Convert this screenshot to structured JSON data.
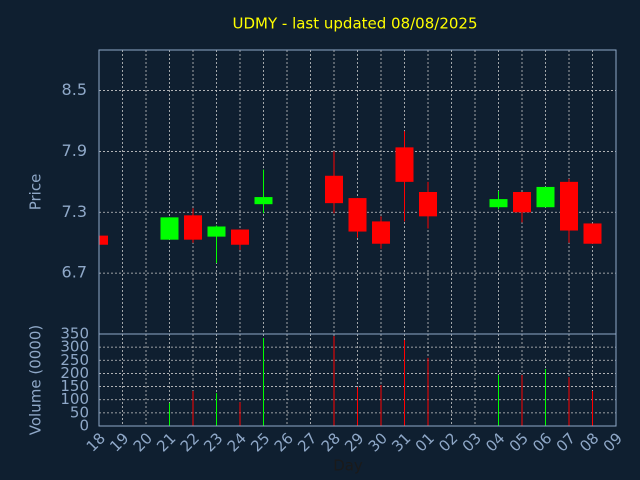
{
  "chart_data": {
    "type": "candlestick",
    "title": "UDMY - last updated 08/08/2025",
    "ylabel": "Price",
    "volume_ylabel": "Volume (0000)",
    "xlabel": "Day",
    "categories": [
      "18",
      "19",
      "20",
      "21",
      "22",
      "23",
      "24",
      "25",
      "26",
      "27",
      "28",
      "29",
      "30",
      "31",
      "01",
      "02",
      "03",
      "04",
      "05",
      "06",
      "07",
      "08",
      "09"
    ],
    "open": [
      7.07,
      null,
      null,
      7.03,
      7.27,
      7.06,
      7.13,
      7.38,
      null,
      null,
      7.66,
      7.44,
      7.21,
      7.94,
      7.5,
      null,
      null,
      7.35,
      7.5,
      7.35,
      7.6,
      7.19,
      null
    ],
    "high": [
      7.07,
      null,
      null,
      7.25,
      7.34,
      7.17,
      7.13,
      7.72,
      null,
      null,
      7.9,
      7.44,
      7.26,
      8.1,
      7.6,
      null,
      null,
      7.51,
      7.5,
      7.55,
      7.63,
      7.19,
      null
    ],
    "low": [
      6.98,
      null,
      null,
      7.03,
      7.0,
      6.8,
      6.93,
      7.29,
      null,
      null,
      7.29,
      7.05,
      6.94,
      7.21,
      7.14,
      null,
      null,
      7.33,
      7.2,
      7.35,
      7.0,
      6.99,
      null
    ],
    "close": [
      6.98,
      null,
      null,
      7.25,
      7.03,
      7.16,
      6.98,
      7.45,
      null,
      null,
      7.39,
      7.11,
      6.99,
      7.6,
      7.26,
      null,
      null,
      7.43,
      7.3,
      7.55,
      7.12,
      6.99,
      null
    ],
    "volume": [
      null,
      null,
      null,
      87,
      133,
      125,
      91,
      335,
      null,
      null,
      342,
      148,
      156,
      327,
      259,
      null,
      null,
      194,
      194,
      217,
      186,
      133,
      null
    ],
    "up_color": "#00ff00",
    "down_color": "#ff0000",
    "ylim": [
      6.1,
      8.9
    ],
    "yticks": [
      6.7,
      7.3,
      7.9,
      8.5
    ],
    "volume_ylim": [
      0,
      350
    ],
    "volume_yticks": [
      0,
      50,
      100,
      150,
      200,
      250,
      300,
      350
    ],
    "grid": true
  }
}
